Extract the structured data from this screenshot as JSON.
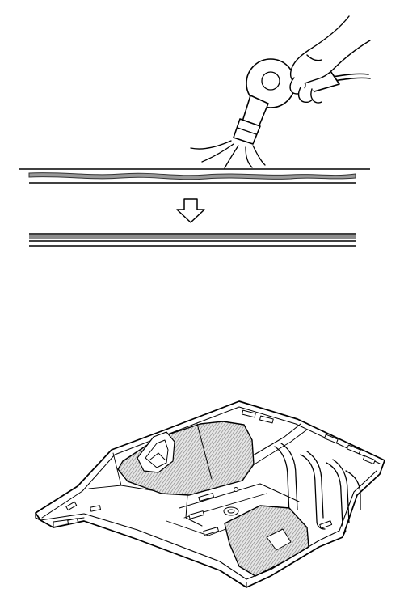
{
  "figure": {
    "panels": [
      {
        "id": "top",
        "content": "heat-gun-flattening-sheet"
      },
      {
        "id": "bottom",
        "content": "floor-pan-with-pads"
      }
    ],
    "icons": [
      "heat-gun-icon",
      "hand-icon",
      "down-arrow-icon"
    ],
    "colors": {
      "line": "#000000",
      "wavy_sheet_fill": "#9a9a9a",
      "flat_sheet_fill": "#8c8c8c",
      "pad_fill": "#b3b3b3",
      "background": "#ffffff"
    }
  }
}
